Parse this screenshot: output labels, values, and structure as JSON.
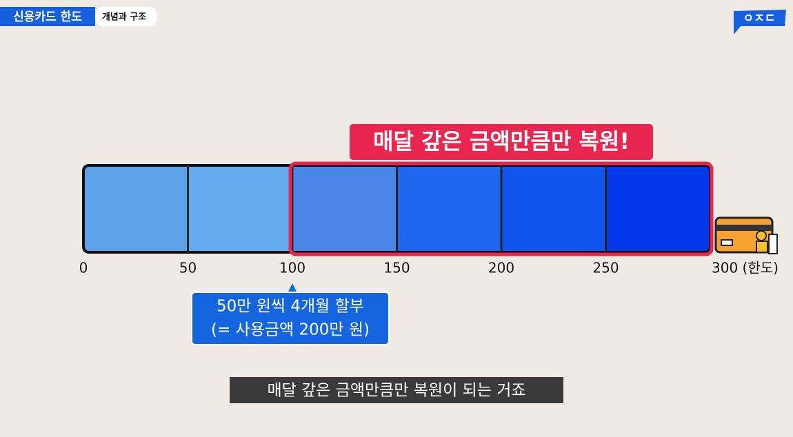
{
  "header": {
    "title": "신용카드 한도",
    "subtitle": "개념과 구조"
  },
  "logo": "ㅇㅈㄷ",
  "scale": {
    "ticks": [
      0,
      50,
      100,
      150,
      200,
      250,
      {
        "value": 300,
        "label": "300 (한도)"
      }
    ],
    "segment_colors": [
      "#5ea3ea",
      "#64aaee",
      "#4a86e8",
      "#1e66ec",
      "#0f55ee",
      "#0538e8"
    ]
  },
  "highlight": {
    "label": "매달 갚은 금액만큼만 복원!",
    "from": 100,
    "color": "#e8264f"
  },
  "callout": {
    "lines": [
      "50만 원씩 4개월 할부",
      "(= 사용금액 200만 원)"
    ],
    "at": 100,
    "color": "#1565e0"
  },
  "caption": "매달 갚은 금액만큼만 복원이 되는 거죠"
}
